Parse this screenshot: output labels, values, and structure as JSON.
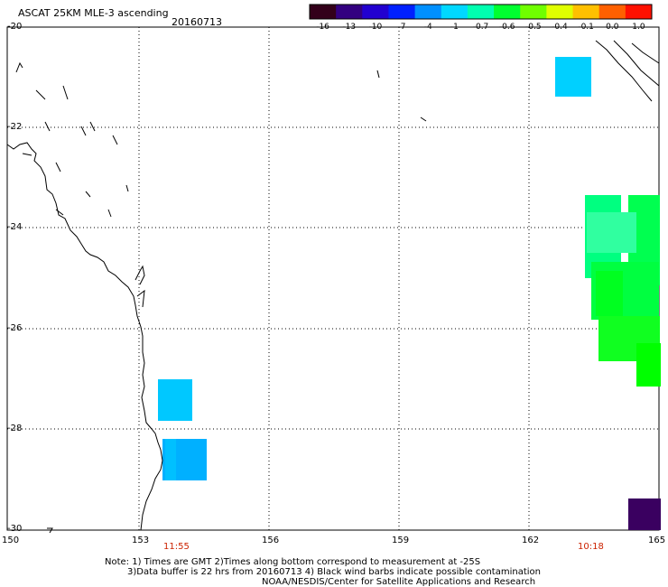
{
  "header": {
    "title": "ASCAT 25KM MLE-3 ascending",
    "date": "20160713"
  },
  "colorbar": {
    "labels": [
      "-16",
      "-13",
      "-10",
      "-7",
      "-4",
      "-1",
      "-0.7",
      "-0.6",
      "-0.5",
      "-0.4",
      "-0.1",
      "0.0",
      "1.0"
    ],
    "colors": [
      "#33001a",
      "#330080",
      "#2200d0",
      "#0020ff",
      "#0090ff",
      "#00d8ff",
      "#00ffb0",
      "#00ff30",
      "#70ff00",
      "#e0ff00",
      "#ffc000",
      "#ff6000",
      "#ff1000"
    ]
  },
  "axes": {
    "lat_labels": [
      "-20",
      "-22",
      "-24",
      "-26",
      "-28",
      "-30"
    ],
    "lon_labels": [
      "150",
      "153",
      "156",
      "159",
      "162",
      "165"
    ]
  },
  "times": {
    "left": "11:55",
    "right": "10:18"
  },
  "notes": {
    "line1": "Note: 1) Times are GMT 2)Times along bottom correspond to measurement at -25S",
    "line2": "3)Data buffer is 22 hrs from 20160713 4) Black wind barbs indicate possible contamination",
    "line3": "NOAA/NESDIS/Center for Satellite Applications and Research"
  }
}
